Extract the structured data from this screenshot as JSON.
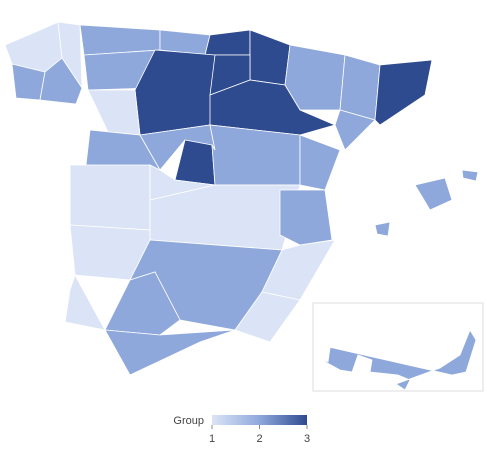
{
  "chart_data": {
    "type": "choropleth",
    "legend_title": "Group",
    "colorscale": [
      "#dbe4f6",
      "#8fa8dc",
      "#2f4b8f"
    ],
    "clim": [
      1,
      3
    ],
    "cticks": [
      1,
      2,
      3
    ],
    "values": [
      1,
      1,
      2,
      2,
      2,
      2,
      3,
      3,
      2,
      3,
      3,
      2,
      3,
      2,
      1,
      2,
      1,
      2,
      3,
      2,
      2,
      2,
      3,
      1,
      1,
      2,
      1,
      2,
      1,
      2,
      2,
      2,
      2,
      1,
      2,
      1,
      2
    ]
  }
}
